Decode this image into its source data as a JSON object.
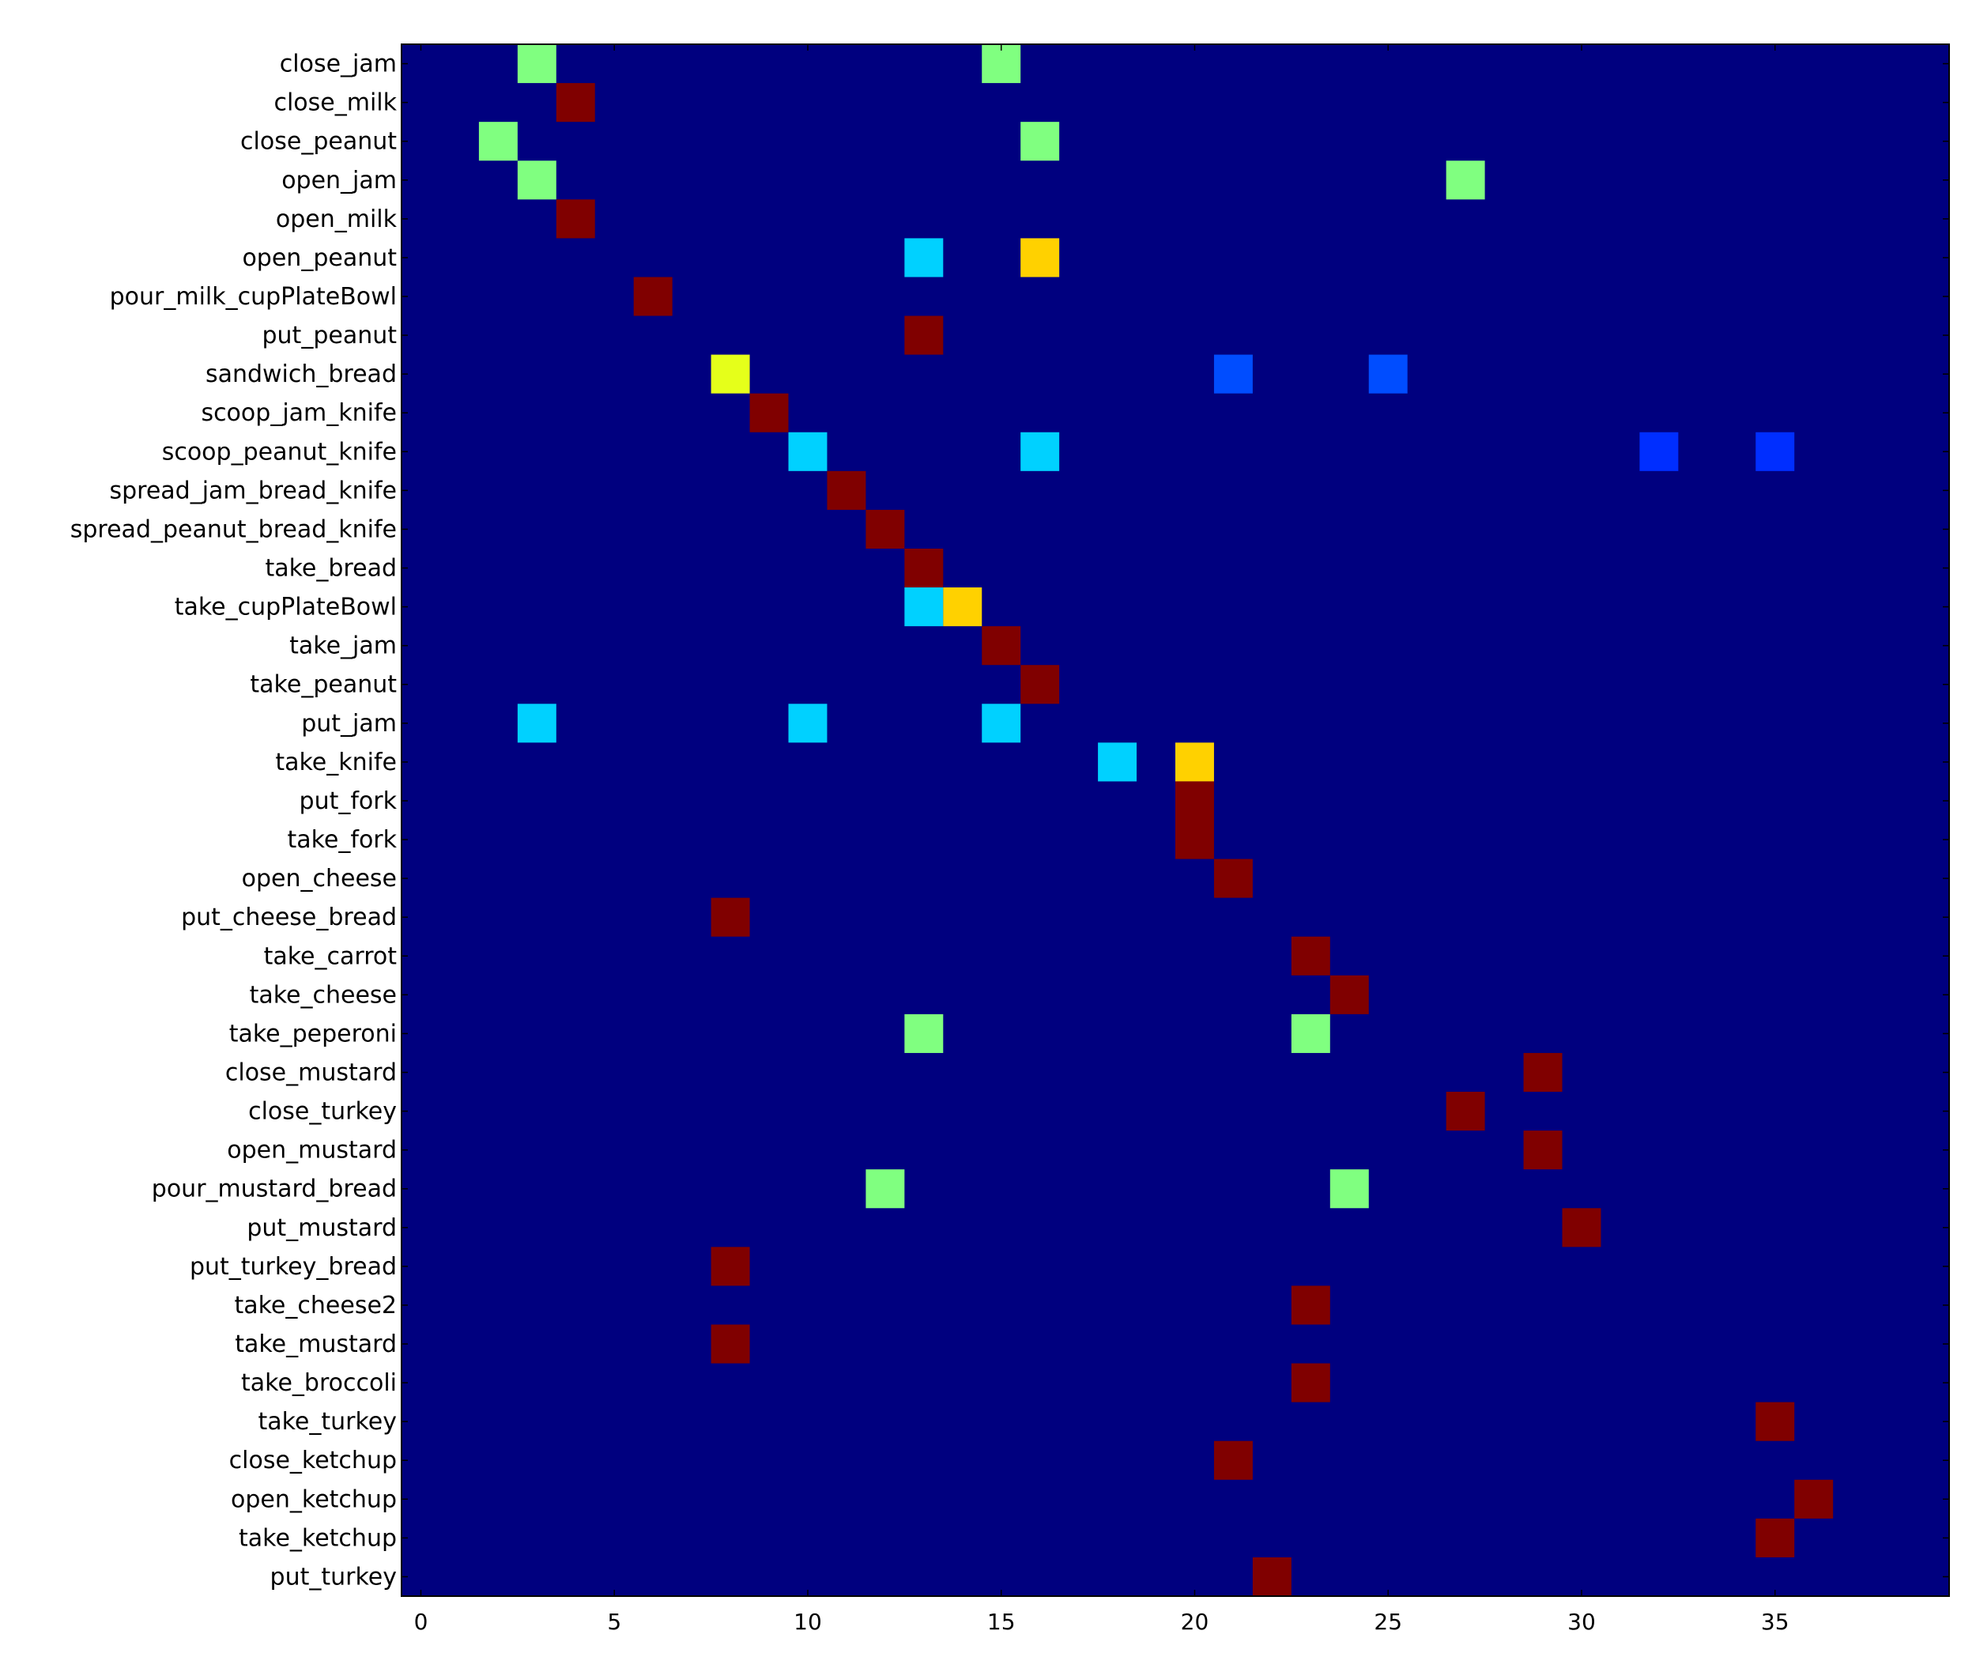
{
  "chart_data": {
    "type": "heatmap",
    "title": "",
    "xlabel": "",
    "ylabel": "",
    "xlim": [
      -0.5,
      39.5
    ],
    "xticks": [
      0,
      5,
      10,
      15,
      20,
      25,
      30,
      35
    ],
    "grid": false,
    "legend": "none",
    "colormap": "jet",
    "background_value": 0,
    "rows": [
      "close_jam",
      "close_milk",
      "close_peanut",
      "open_jam",
      "open_milk",
      "open_peanut",
      "pour_milk_cupPlateBowl",
      "put_peanut",
      "sandwich_bread",
      "scoop_jam_knife",
      "scoop_peanut_knife",
      "spread_jam_bread_knife",
      "spread_peanut_bread_knife",
      "take_bread",
      "take_cupPlateBowl",
      "take_jam",
      "take_peanut",
      "put_jam",
      "take_knife",
      "put_fork",
      "take_fork",
      "open_cheese",
      "put_cheese_bread",
      "take_carrot",
      "take_cheese",
      "take_peperoni",
      "close_mustard",
      "close_turkey",
      "open_mustard",
      "pour_mustard_bread",
      "put_mustard",
      "put_turkey_bread",
      "take_cheese2",
      "take_mustard",
      "take_broccoli",
      "take_turkey",
      "close_ketchup",
      "open_ketchup",
      "take_ketchup",
      "put_turkey"
    ],
    "cells": [
      {
        "row": 0,
        "col": 3,
        "value": 0.5
      },
      {
        "row": 0,
        "col": 15,
        "value": 0.5
      },
      {
        "row": 1,
        "col": 4,
        "value": 1.0
      },
      {
        "row": 2,
        "col": 2,
        "value": 0.5
      },
      {
        "row": 2,
        "col": 16,
        "value": 0.5
      },
      {
        "row": 3,
        "col": 3,
        "value": 0.5
      },
      {
        "row": 3,
        "col": 27,
        "value": 0.5
      },
      {
        "row": 4,
        "col": 4,
        "value": 1.0
      },
      {
        "row": 5,
        "col": 13,
        "value": 0.33
      },
      {
        "row": 5,
        "col": 16,
        "value": 0.67
      },
      {
        "row": 6,
        "col": 6,
        "value": 1.0
      },
      {
        "row": 7,
        "col": 13,
        "value": 1.0
      },
      {
        "row": 8,
        "col": 8,
        "value": 0.6
      },
      {
        "row": 8,
        "col": 21,
        "value": 0.2
      },
      {
        "row": 8,
        "col": 25,
        "value": 0.2
      },
      {
        "row": 9,
        "col": 9,
        "value": 1.0
      },
      {
        "row": 10,
        "col": 10,
        "value": 0.33
      },
      {
        "row": 10,
        "col": 16,
        "value": 0.33
      },
      {
        "row": 10,
        "col": 32,
        "value": 0.17
      },
      {
        "row": 10,
        "col": 35,
        "value": 0.17
      },
      {
        "row": 11,
        "col": 11,
        "value": 1.0
      },
      {
        "row": 12,
        "col": 12,
        "value": 1.0
      },
      {
        "row": 13,
        "col": 13,
        "value": 1.0
      },
      {
        "row": 14,
        "col": 13,
        "value": 0.33
      },
      {
        "row": 14,
        "col": 14,
        "value": 0.67
      },
      {
        "row": 15,
        "col": 15,
        "value": 1.0
      },
      {
        "row": 16,
        "col": 16,
        "value": 1.0
      },
      {
        "row": 17,
        "col": 3,
        "value": 0.33
      },
      {
        "row": 17,
        "col": 10,
        "value": 0.33
      },
      {
        "row": 17,
        "col": 15,
        "value": 0.33
      },
      {
        "row": 18,
        "col": 18,
        "value": 0.33
      },
      {
        "row": 18,
        "col": 20,
        "value": 0.67
      },
      {
        "row": 19,
        "col": 20,
        "value": 1.0
      },
      {
        "row": 20,
        "col": 20,
        "value": 1.0
      },
      {
        "row": 21,
        "col": 21,
        "value": 1.0
      },
      {
        "row": 22,
        "col": 8,
        "value": 1.0
      },
      {
        "row": 23,
        "col": 23,
        "value": 1.0
      },
      {
        "row": 24,
        "col": 24,
        "value": 1.0
      },
      {
        "row": 25,
        "col": 13,
        "value": 0.5
      },
      {
        "row": 25,
        "col": 23,
        "value": 0.5
      },
      {
        "row": 26,
        "col": 29,
        "value": 1.0
      },
      {
        "row": 27,
        "col": 27,
        "value": 1.0
      },
      {
        "row": 28,
        "col": 29,
        "value": 1.0
      },
      {
        "row": 29,
        "col": 12,
        "value": 0.5
      },
      {
        "row": 29,
        "col": 24,
        "value": 0.5
      },
      {
        "row": 30,
        "col": 30,
        "value": 1.0
      },
      {
        "row": 31,
        "col": 8,
        "value": 1.0
      },
      {
        "row": 32,
        "col": 23,
        "value": 1.0
      },
      {
        "row": 33,
        "col": 8,
        "value": 1.0
      },
      {
        "row": 34,
        "col": 23,
        "value": 1.0
      },
      {
        "row": 35,
        "col": 35,
        "value": 1.0
      },
      {
        "row": 36,
        "col": 21,
        "value": 1.0
      },
      {
        "row": 37,
        "col": 36,
        "value": 1.0
      },
      {
        "row": 38,
        "col": 35,
        "value": 1.0
      },
      {
        "row": 39,
        "col": 22,
        "value": 1.0
      }
    ]
  }
}
